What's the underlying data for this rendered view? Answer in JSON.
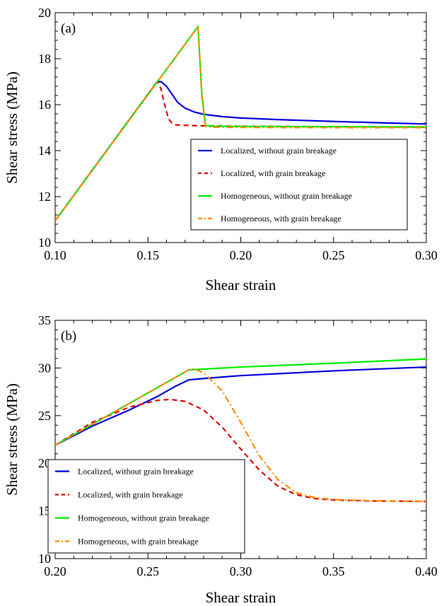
{
  "chart_data": [
    {
      "type": "line",
      "panel_label": "(a)",
      "xlabel": "Shear strain",
      "ylabel": "Shear stress (MPa)",
      "xlim": [
        0.1,
        0.3
      ],
      "ylim": [
        10,
        20
      ],
      "xticks": [
        0.1,
        0.15,
        0.2,
        0.25,
        0.3
      ],
      "xtick_labels": [
        "0.10",
        "0.15",
        "0.20",
        "0.25",
        "0.30"
      ],
      "yticks": [
        10,
        12,
        14,
        16,
        18,
        20
      ],
      "ytick_labels": [
        "10",
        "12",
        "14",
        "16",
        "18",
        "20"
      ],
      "grid": false,
      "legend_position": "center-right",
      "series": [
        {
          "name": "Localized, without grain breakage",
          "color": "#0000dd",
          "dash": "solid",
          "x": [
            0.1,
            0.155,
            0.157,
            0.16,
            0.163,
            0.166,
            0.17,
            0.175,
            0.18,
            0.19,
            0.2,
            0.22,
            0.25,
            0.28,
            0.3
          ],
          "y": [
            10.95,
            17.0,
            17.0,
            16.8,
            16.45,
            16.1,
            15.85,
            15.68,
            15.58,
            15.48,
            15.42,
            15.35,
            15.27,
            15.2,
            15.16
          ]
        },
        {
          "name": "Localized, with grain breakage",
          "color": "#e00000",
          "dash": "dash",
          "x": [
            0.1,
            0.155,
            0.157,
            0.159,
            0.161,
            0.163,
            0.165,
            0.17,
            0.18,
            0.2,
            0.25,
            0.3
          ],
          "y": [
            10.95,
            17.0,
            16.7,
            16.0,
            15.4,
            15.18,
            15.12,
            15.1,
            15.08,
            15.06,
            15.04,
            15.02
          ]
        },
        {
          "name": "Homogeneous, without grain breakage",
          "color": "#00ee00",
          "dash": "solid",
          "x": [
            0.1,
            0.177,
            0.179,
            0.181,
            0.185,
            0.2,
            0.25,
            0.3
          ],
          "y": [
            10.95,
            19.4,
            16.5,
            15.1,
            15.06,
            15.05,
            15.04,
            15.03
          ]
        },
        {
          "name": "Homogeneous, with grain breakage",
          "color": "#ff8c00",
          "dash": "dashdot",
          "x": [
            0.1,
            0.177,
            0.179,
            0.181,
            0.185,
            0.2,
            0.25,
            0.3
          ],
          "y": [
            10.95,
            19.4,
            16.4,
            15.05,
            15.02,
            15.01,
            15.0,
            15.0
          ]
        }
      ]
    },
    {
      "type": "line",
      "panel_label": "(b)",
      "xlabel": "Shear strain",
      "ylabel": "Shear stress (MPa)",
      "xlim": [
        0.2,
        0.4
      ],
      "ylim": [
        10,
        35
      ],
      "xticks": [
        0.2,
        0.25,
        0.3,
        0.35,
        0.4
      ],
      "xtick_labels": [
        "0.20",
        "0.25",
        "0.30",
        "0.35",
        "0.40"
      ],
      "yticks": [
        10,
        15,
        20,
        25,
        30,
        35
      ],
      "ytick_labels": [
        "10",
        "15",
        "20",
        "25",
        "30",
        "35"
      ],
      "grid": false,
      "legend_position": "bottom-left",
      "series": [
        {
          "name": "Localized, without grain breakage",
          "color": "#0000dd",
          "dash": "solid",
          "x": [
            0.2,
            0.22,
            0.24,
            0.255,
            0.265,
            0.272,
            0.28,
            0.3,
            0.35,
            0.4
          ],
          "y": [
            21.9,
            23.9,
            25.6,
            27.0,
            28.1,
            28.75,
            28.9,
            29.2,
            29.7,
            30.1
          ]
        },
        {
          "name": "Localized, with grain breakage",
          "color": "#e00000",
          "dash": "dash",
          "x": [
            0.2,
            0.22,
            0.24,
            0.255,
            0.262,
            0.27,
            0.28,
            0.29,
            0.3,
            0.31,
            0.32,
            0.33,
            0.34,
            0.35,
            0.37,
            0.4
          ],
          "y": [
            21.9,
            24.3,
            25.9,
            26.6,
            26.7,
            26.5,
            25.6,
            23.8,
            21.5,
            19.3,
            17.6,
            16.7,
            16.3,
            16.15,
            16.05,
            16.0
          ]
        },
        {
          "name": "Homogeneous, without grain breakage",
          "color": "#00ee00",
          "dash": "solid",
          "x": [
            0.2,
            0.272,
            0.3,
            0.35,
            0.4
          ],
          "y": [
            21.9,
            29.8,
            30.1,
            30.5,
            30.95
          ]
        },
        {
          "name": "Homogeneous, with grain breakage",
          "color": "#ff8c00",
          "dash": "dashdot",
          "x": [
            0.2,
            0.272,
            0.275,
            0.28,
            0.29,
            0.3,
            0.31,
            0.32,
            0.33,
            0.34,
            0.35,
            0.37,
            0.4
          ],
          "y": [
            21.9,
            29.8,
            29.9,
            29.5,
            27.6,
            24.3,
            20.8,
            18.3,
            16.9,
            16.4,
            16.2,
            16.08,
            16.0
          ]
        }
      ]
    }
  ]
}
